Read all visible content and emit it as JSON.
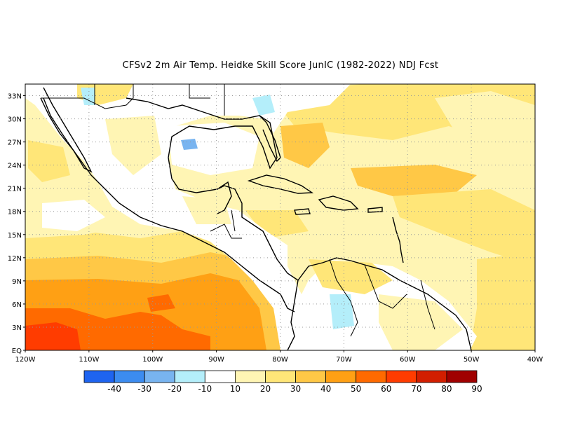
{
  "title": "CFSv2  2m Air Temp. Heidke Skill Score JunIC (1982-2022) NDJ Fcst",
  "lat_labels": [
    "33N",
    "30N",
    "27N",
    "24N",
    "21N",
    "18N",
    "15N",
    "12N",
    "9N",
    "6N",
    "3N",
    "EQ"
  ],
  "lon_labels": [
    "120W",
    "110W",
    "100W",
    "90W",
    "80W",
    "70W",
    "60W",
    "50W",
    "40W"
  ],
  "colorbar": {
    "labels": [
      "-40",
      "-30",
      "-20",
      "-10",
      "10",
      "20",
      "30",
      "40",
      "50",
      "60",
      "70",
      "80",
      "90"
    ],
    "colors": [
      "#1e64f0",
      "#3c8cf0",
      "#78b4f0",
      "#b4eefa",
      "#ffffff",
      "#fff5b4",
      "#ffe678",
      "#ffc846",
      "#ffa014",
      "#ff6a00",
      "#ff3c00",
      "#d21e00",
      "#a00000"
    ]
  },
  "palette": {
    "ocean_base": "#fff5b4",
    "land": "#ffffff",
    "coast": "#000000",
    "grid": "#999999"
  }
}
